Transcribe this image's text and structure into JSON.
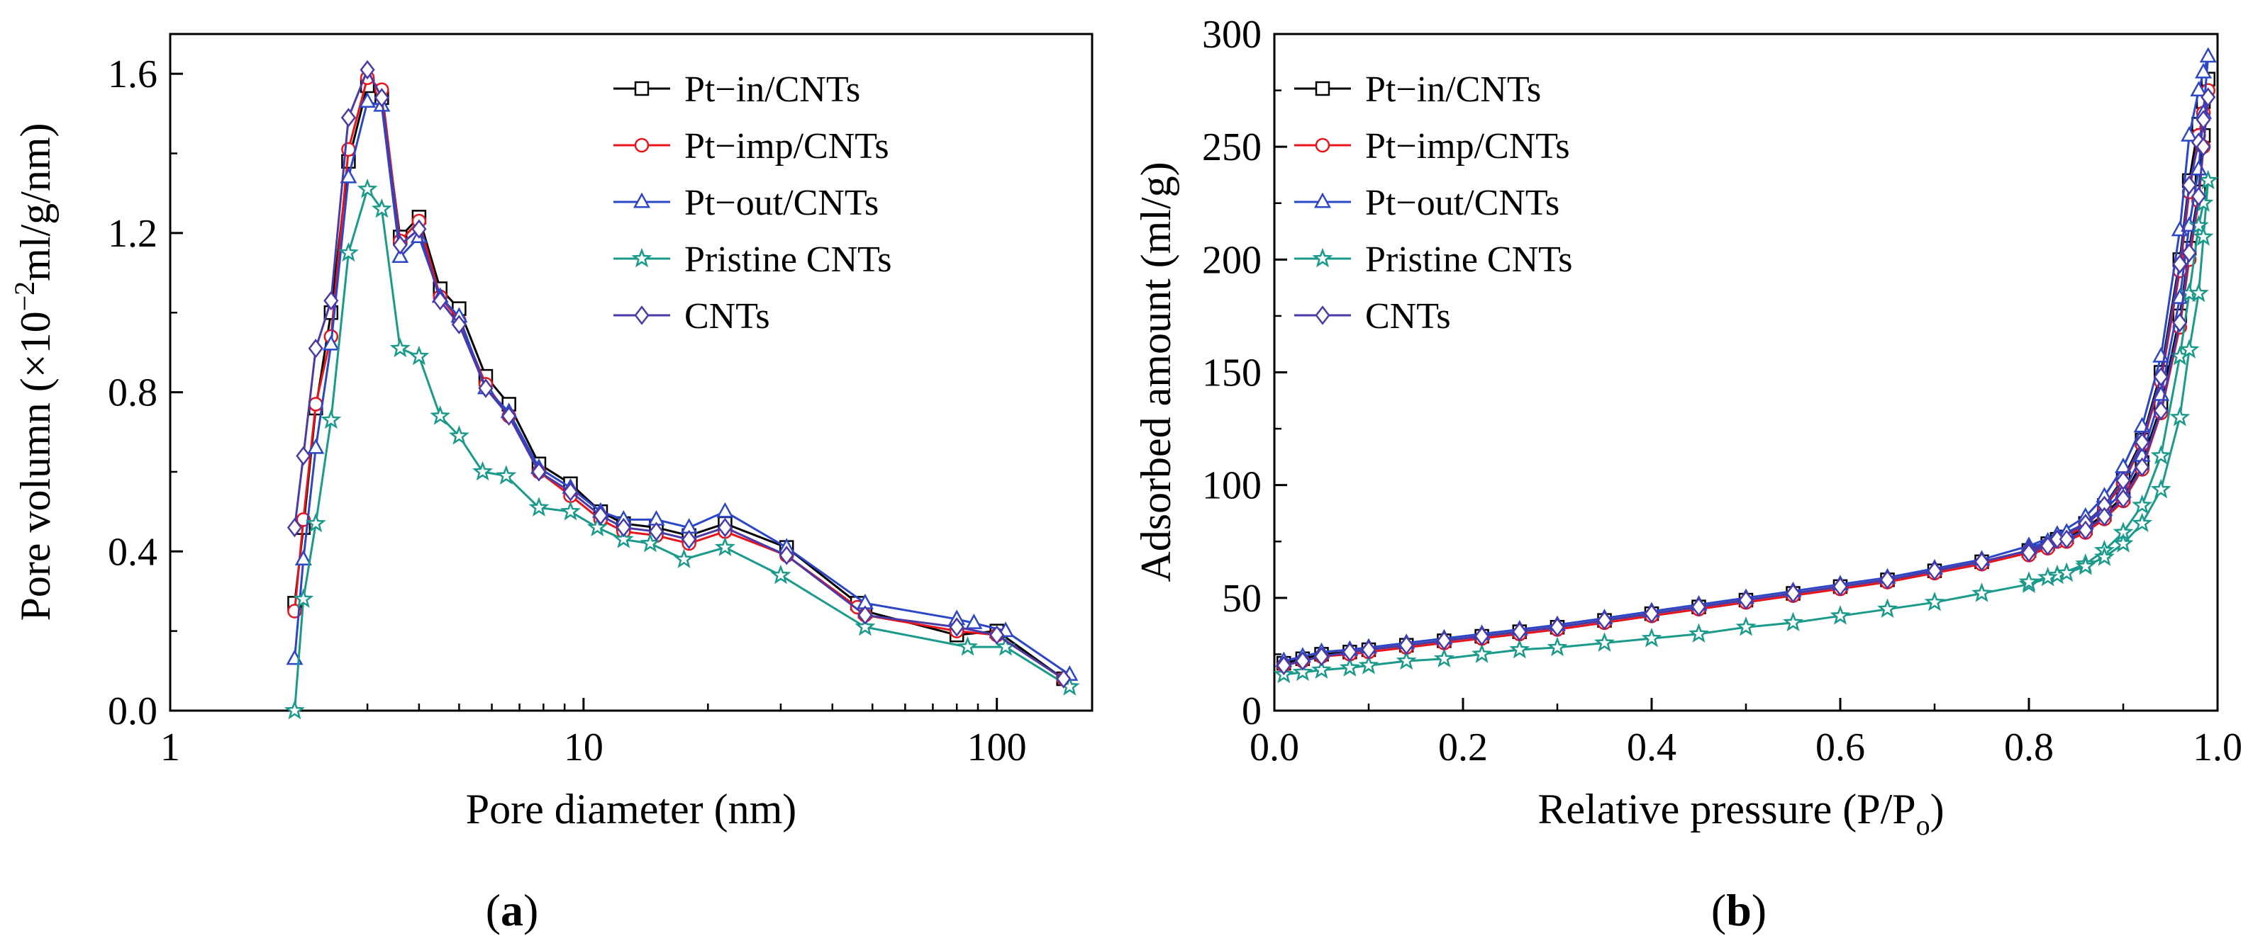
{
  "chart_data": [
    {
      "panel": "(a)",
      "panel_letter": "a",
      "type": "line",
      "xscale": "log",
      "xlabel": "Pore diameter (nm)",
      "ylabel_parts": [
        "Pore volumn (×10",
        "−2",
        "ml/g/nm)"
      ],
      "xlim": [
        1,
        170
      ],
      "ylim": [
        0,
        1.7
      ],
      "xticks": [
        1,
        10,
        100
      ],
      "xtick_labels": [
        "1",
        "10",
        "100"
      ],
      "yticks": [
        0,
        0.4,
        0.8,
        1.2,
        1.6
      ],
      "ytick_labels": [
        "0.0",
        "0.4",
        "0.8",
        "1.2",
        "1.6"
      ],
      "legend_position": "top-right",
      "series": [
        {
          "name": "Pt−in/CNTs",
          "color": "#000000",
          "marker": "square",
          "x": [
            2.0,
            2.1,
            2.25,
            2.45,
            2.7,
            3.0,
            3.25,
            3.6,
            4.0,
            4.5,
            5.0,
            5.8,
            6.6,
            7.8,
            9.3,
            11.0,
            12.5,
            15.0,
            18.0,
            22.0,
            31.0,
            46.0,
            48.0,
            80.0,
            100.0,
            145.0
          ],
          "y": [
            0.27,
            0.46,
            0.76,
            1.0,
            1.38,
            1.57,
            1.54,
            1.19,
            1.24,
            1.06,
            1.01,
            0.84,
            0.77,
            0.62,
            0.57,
            0.5,
            0.47,
            0.46,
            0.44,
            0.47,
            0.41,
            0.27,
            0.25,
            0.19,
            0.2,
            0.08
          ]
        },
        {
          "name": "Pt−imp/CNTs",
          "color": "#e8141c",
          "marker": "circle",
          "x": [
            2.0,
            2.1,
            2.25,
            2.45,
            2.7,
            3.0,
            3.25,
            3.6,
            4.0,
            4.5,
            5.0,
            5.8,
            6.6,
            7.8,
            9.3,
            11.0,
            12.5,
            15.0,
            18.0,
            22.0,
            31.0,
            46.0,
            48.0,
            80.0,
            100.0,
            145.0
          ],
          "y": [
            0.25,
            0.48,
            0.77,
            0.94,
            1.41,
            1.59,
            1.56,
            1.18,
            1.23,
            1.04,
            0.98,
            0.82,
            0.74,
            0.6,
            0.54,
            0.48,
            0.45,
            0.44,
            0.42,
            0.45,
            0.39,
            0.26,
            0.24,
            0.2,
            0.19,
            0.08
          ]
        },
        {
          "name": "Pt−out/CNTs",
          "color": "#2b47c8",
          "marker": "triangle",
          "x": [
            2.0,
            2.1,
            2.25,
            2.45,
            2.7,
            3.0,
            3.25,
            3.6,
            4.0,
            4.5,
            5.0,
            5.8,
            6.6,
            7.8,
            9.3,
            11.0,
            12.5,
            15.0,
            18.0,
            22.0,
            31.0,
            48.0,
            80.0,
            88.0,
            105.0,
            150.0
          ],
          "y": [
            0.13,
            0.38,
            0.66,
            0.92,
            1.34,
            1.53,
            1.52,
            1.14,
            1.19,
            1.04,
            0.99,
            0.81,
            0.75,
            0.61,
            0.56,
            0.5,
            0.48,
            0.48,
            0.46,
            0.5,
            0.41,
            0.27,
            0.23,
            0.22,
            0.2,
            0.09
          ]
        },
        {
          "name": "Pristine CNTs",
          "color": "#1a9a8a",
          "marker": "star",
          "x": [
            2.0,
            2.1,
            2.25,
            2.45,
            2.7,
            3.0,
            3.25,
            3.6,
            4.0,
            4.5,
            5.0,
            5.7,
            6.5,
            7.8,
            9.3,
            10.8,
            12.5,
            14.5,
            17.5,
            22.0,
            30.0,
            48.0,
            85.0,
            105.0,
            150.0
          ],
          "y": [
            0.0,
            0.28,
            0.47,
            0.73,
            1.15,
            1.31,
            1.26,
            0.91,
            0.89,
            0.74,
            0.69,
            0.6,
            0.59,
            0.51,
            0.5,
            0.46,
            0.43,
            0.42,
            0.38,
            0.41,
            0.34,
            0.21,
            0.16,
            0.16,
            0.06
          ]
        },
        {
          "name": "CNTs",
          "color": "#4a3aa8",
          "marker": "diamond",
          "x": [
            2.0,
            2.1,
            2.25,
            2.45,
            2.7,
            3.0,
            3.25,
            3.6,
            4.0,
            4.5,
            5.0,
            5.8,
            6.6,
            7.8,
            9.3,
            11.0,
            12.5,
            15.0,
            18.0,
            22.0,
            31.0,
            48.0,
            80.0,
            100.0,
            145.0
          ],
          "y": [
            0.46,
            0.64,
            0.91,
            1.03,
            1.49,
            1.61,
            1.54,
            1.17,
            1.21,
            1.03,
            0.97,
            0.81,
            0.74,
            0.6,
            0.55,
            0.49,
            0.46,
            0.45,
            0.43,
            0.46,
            0.39,
            0.24,
            0.21,
            0.19,
            0.08
          ]
        }
      ]
    },
    {
      "panel": "(b)",
      "panel_letter": "b",
      "type": "line",
      "xscale": "linear",
      "xlabel_parts": [
        "Relative pressure (P/P",
        "o",
        ")"
      ],
      "ylabel": "Adsorbed amount (ml/g)",
      "xlim": [
        0.0,
        1.0
      ],
      "ylim": [
        0,
        300
      ],
      "xticks": [
        0.0,
        0.2,
        0.4,
        0.6,
        0.8,
        1.0
      ],
      "xtick_labels": [
        "0.0",
        "0.2",
        "0.4",
        "0.6",
        "0.8",
        "1.0"
      ],
      "yticks": [
        0,
        50,
        100,
        150,
        200,
        250,
        300
      ],
      "ytick_labels": [
        "0",
        "50",
        "100",
        "150",
        "200",
        "250",
        "300"
      ],
      "legend_position": "top-left",
      "series": [
        {
          "name": "Pt−in/CNTs",
          "color": "#000000",
          "marker": "square",
          "x": [
            0.01,
            0.03,
            0.05,
            0.08,
            0.1,
            0.14,
            0.18,
            0.22,
            0.26,
            0.3,
            0.35,
            0.4,
            0.45,
            0.5,
            0.55,
            0.6,
            0.65,
            0.7,
            0.75,
            0.8,
            0.83,
            0.86,
            0.88,
            0.9,
            0.92,
            0.94,
            0.96,
            0.97,
            0.98,
            0.985,
            0.99,
            0.985,
            0.98,
            0.97,
            0.96,
            0.94,
            0.92,
            0.9,
            0.88,
            0.86,
            0.84,
            0.82,
            0.8
          ],
          "y": [
            21,
            23,
            25,
            26,
            27,
            29,
            31,
            33,
            35,
            37,
            40,
            43,
            46,
            49,
            52,
            55,
            58,
            62,
            66,
            71,
            76,
            83,
            91,
            103,
            120,
            150,
            200,
            235,
            260,
            270,
            280,
            255,
            230,
            205,
            175,
            135,
            110,
            95,
            87,
            81,
            77,
            74,
            71
          ]
        },
        {
          "name": "Pt−imp/CNTs",
          "color": "#e8141c",
          "marker": "circle",
          "x": [
            0.01,
            0.03,
            0.05,
            0.08,
            0.1,
            0.14,
            0.18,
            0.22,
            0.26,
            0.3,
            0.35,
            0.4,
            0.45,
            0.5,
            0.55,
            0.6,
            0.65,
            0.7,
            0.75,
            0.8,
            0.83,
            0.86,
            0.88,
            0.9,
            0.92,
            0.94,
            0.96,
            0.97,
            0.98,
            0.985,
            0.99,
            0.985,
            0.98,
            0.97,
            0.96,
            0.94,
            0.92,
            0.9,
            0.88,
            0.86,
            0.84,
            0.82,
            0.8
          ],
          "y": [
            20,
            22,
            24,
            25,
            26,
            28,
            30,
            32,
            34,
            36,
            39,
            42,
            45,
            48,
            51,
            54,
            57,
            61,
            65,
            70,
            75,
            82,
            90,
            101,
            118,
            146,
            195,
            230,
            255,
            265,
            275,
            250,
            226,
            200,
            170,
            132,
            107,
            93,
            85,
            79,
            75,
            72,
            69
          ]
        },
        {
          "name": "Pt−out/CNTs",
          "color": "#2b47c8",
          "marker": "triangle",
          "x": [
            0.01,
            0.03,
            0.05,
            0.08,
            0.1,
            0.14,
            0.18,
            0.22,
            0.26,
            0.3,
            0.35,
            0.4,
            0.45,
            0.5,
            0.55,
            0.6,
            0.65,
            0.7,
            0.75,
            0.8,
            0.83,
            0.86,
            0.88,
            0.9,
            0.92,
            0.94,
            0.96,
            0.97,
            0.98,
            0.985,
            0.99,
            0.985,
            0.98,
            0.97,
            0.96,
            0.94,
            0.92,
            0.9,
            0.88,
            0.86,
            0.84,
            0.82,
            0.8
          ],
          "y": [
            22,
            24,
            26,
            27,
            28,
            30,
            32,
            34,
            36,
            38,
            41,
            44,
            47,
            50,
            53,
            56,
            59,
            63,
            67,
            73,
            78,
            86,
            95,
            108,
            126,
            157,
            213,
            255,
            275,
            283,
            290,
            265,
            240,
            215,
            183,
            140,
            113,
            97,
            89,
            83,
            79,
            75,
            72
          ]
        },
        {
          "name": "Pristine CNTs",
          "color": "#1a9a8a",
          "marker": "star",
          "x": [
            0.01,
            0.03,
            0.05,
            0.08,
            0.1,
            0.14,
            0.18,
            0.22,
            0.26,
            0.3,
            0.35,
            0.4,
            0.45,
            0.5,
            0.55,
            0.6,
            0.65,
            0.7,
            0.75,
            0.8,
            0.83,
            0.86,
            0.88,
            0.9,
            0.92,
            0.94,
            0.96,
            0.97,
            0.98,
            0.985,
            0.99,
            0.985,
            0.98,
            0.97,
            0.96,
            0.94,
            0.92,
            0.9,
            0.88,
            0.86,
            0.84,
            0.82,
            0.8
          ],
          "y": [
            16,
            17,
            18,
            19,
            20,
            22,
            23,
            25,
            27,
            28,
            30,
            32,
            34,
            37,
            39,
            42,
            45,
            48,
            52,
            56,
            60,
            65,
            71,
            79,
            91,
            113,
            157,
            185,
            215,
            225,
            235,
            210,
            185,
            160,
            130,
            98,
            83,
            74,
            68,
            64,
            61,
            59,
            57
          ]
        },
        {
          "name": "CNTs",
          "color": "#4a3aa8",
          "marker": "diamond",
          "x": [
            0.01,
            0.03,
            0.05,
            0.08,
            0.1,
            0.14,
            0.18,
            0.22,
            0.26,
            0.3,
            0.35,
            0.4,
            0.45,
            0.5,
            0.55,
            0.6,
            0.65,
            0.7,
            0.75,
            0.8,
            0.83,
            0.86,
            0.88,
            0.9,
            0.92,
            0.94,
            0.96,
            0.97,
            0.98,
            0.985,
            0.99,
            0.985,
            0.98,
            0.97,
            0.96,
            0.94,
            0.92,
            0.9,
            0.88,
            0.86,
            0.84,
            0.82,
            0.8
          ],
          "y": [
            20,
            22,
            24,
            26,
            27,
            29,
            31,
            33,
            35,
            37,
            40,
            43,
            46,
            49,
            52,
            55,
            58,
            62,
            66,
            71,
            76,
            83,
            91,
            102,
            119,
            148,
            198,
            233,
            252,
            262,
            272,
            250,
            228,
            203,
            172,
            133,
            108,
            94,
            86,
            80,
            76,
            73,
            70
          ]
        }
      ]
    }
  ]
}
